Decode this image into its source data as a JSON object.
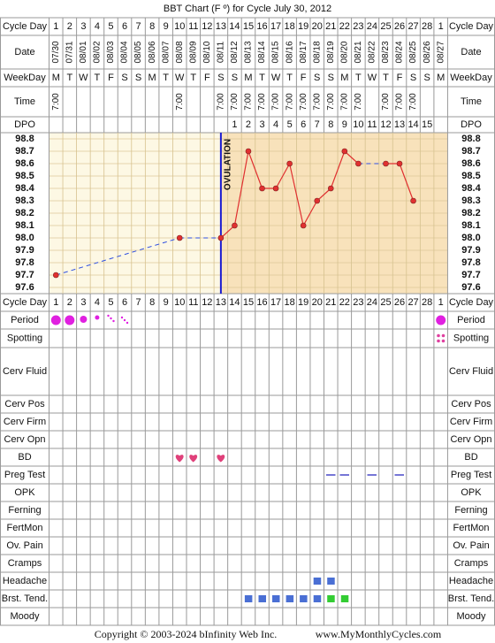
{
  "chart_data": {
    "type": "line",
    "title": "BBT Chart (F º) for Cycle July 30, 2012",
    "header_labels": {
      "cycle_day": "Cycle Day",
      "date": "Date",
      "weekday": "WeekDay",
      "time": "Time",
      "dpo": "DPO"
    },
    "categories": [
      1,
      2,
      3,
      4,
      5,
      6,
      7,
      8,
      9,
      10,
      11,
      12,
      13,
      14,
      15,
      16,
      17,
      18,
      19,
      20,
      21,
      22,
      23,
      24,
      25,
      26,
      27,
      28,
      1
    ],
    "dates": [
      "07/30",
      "07/31",
      "08/01",
      "08/02",
      "08/03",
      "08/04",
      "08/05",
      "08/06",
      "08/07",
      "08/08",
      "08/09",
      "08/10",
      "08/11",
      "08/12",
      "08/13",
      "08/14",
      "08/15",
      "08/16",
      "08/17",
      "08/18",
      "08/19",
      "08/20",
      "08/21",
      "08/22",
      "08/23",
      "08/24",
      "08/25",
      "08/26",
      "08/27"
    ],
    "weekdays": [
      "M",
      "T",
      "W",
      "T",
      "F",
      "S",
      "S",
      "M",
      "T",
      "W",
      "T",
      "F",
      "S",
      "S",
      "M",
      "T",
      "W",
      "T",
      "F",
      "S",
      "S",
      "M",
      "T",
      "W",
      "T",
      "F",
      "S",
      "S",
      "M"
    ],
    "times": [
      "7:00",
      null,
      null,
      null,
      null,
      null,
      null,
      null,
      null,
      "7:00",
      null,
      null,
      "7:00",
      "7:00",
      "7:00",
      "7:00",
      "7:00",
      "7:00",
      "7:00",
      "7:00",
      "7:00",
      "7:00",
      "7:00",
      null,
      "7:00",
      "7:00",
      "7:00",
      null,
      null
    ],
    "dpo": [
      null,
      null,
      null,
      null,
      null,
      null,
      null,
      null,
      null,
      null,
      null,
      null,
      null,
      1,
      2,
      3,
      4,
      5,
      6,
      7,
      8,
      9,
      10,
      11,
      12,
      13,
      14,
      15,
      null
    ],
    "series": [
      {
        "color": "#e03030",
        "values": [
          97.7,
          null,
          null,
          null,
          null,
          null,
          null,
          null,
          null,
          98.0,
          null,
          null,
          98.0,
          98.1,
          98.7,
          98.4,
          98.4,
          98.6,
          98.1,
          98.3,
          98.4,
          98.7,
          98.6,
          null,
          98.6,
          98.6,
          98.3,
          null,
          null
        ]
      }
    ],
    "ylim": [
      97.55,
      98.85
    ],
    "yticks": [
      97.6,
      97.7,
      97.8,
      97.9,
      {
        "value": 98.0,
        "label": "98.0"
      },
      98.1,
      98.2,
      98.3,
      98.4,
      98.5,
      98.6,
      98.7,
      98.8
    ],
    "grid": true,
    "ovulation": {
      "label": "OVULATION",
      "date": "08/11"
    },
    "row_labels": [
      "Period",
      "Spotting",
      "Cerv Fluid",
      "Cerv Pos",
      "Cerv Firm",
      "Cerv Opn",
      "BD",
      "Preg Test",
      "OPK",
      "Ferning",
      "FertMon",
      "Ov. Pain",
      "Cramps",
      "Headache",
      "Brst. Tend.",
      "Moody"
    ],
    "copyright": "Copyright © 2003-2024 bInfinity Web Inc.",
    "website": "www.MyMonthlyCycles.com"
  }
}
